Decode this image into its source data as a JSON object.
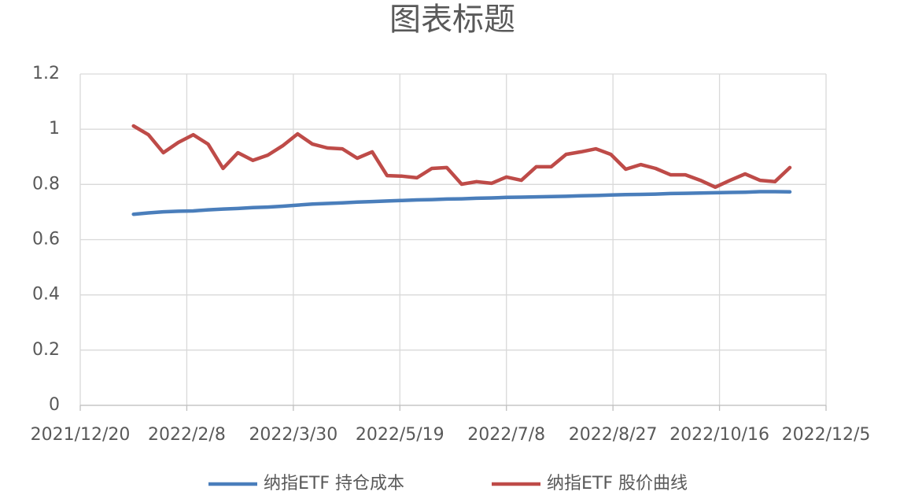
{
  "chart_data": {
    "type": "line",
    "title": "图表标题",
    "x": [
      "2022/1/14",
      "2022/1/21",
      "2022/1/28",
      "2022/2/4",
      "2022/2/11",
      "2022/2/18",
      "2022/2/25",
      "2022/3/4",
      "2022/3/11",
      "2022/3/18",
      "2022/3/25",
      "2022/4/1",
      "2022/4/8",
      "2022/4/15",
      "2022/4/22",
      "2022/4/29",
      "2022/5/6",
      "2022/5/13",
      "2022/5/20",
      "2022/5/27",
      "2022/6/3",
      "2022/6/10",
      "2022/6/17",
      "2022/6/24",
      "2022/7/1",
      "2022/7/8",
      "2022/7/15",
      "2022/7/22",
      "2022/7/29",
      "2022/8/5",
      "2022/8/12",
      "2022/8/19",
      "2022/8/26",
      "2022/9/2",
      "2022/9/9",
      "2022/9/16",
      "2022/9/23",
      "2022/9/30",
      "2022/10/7",
      "2022/10/14",
      "2022/10/21",
      "2022/10/28",
      "2022/11/4",
      "2022/11/11",
      "2022/11/18"
    ],
    "series": [
      {
        "name": "纳指ETF 持仓成本",
        "color": "#4a7ebb",
        "values": [
          0.692,
          0.697,
          0.701,
          0.703,
          0.704,
          0.708,
          0.711,
          0.713,
          0.716,
          0.718,
          0.721,
          0.725,
          0.729,
          0.731,
          0.733,
          0.736,
          0.738,
          0.74,
          0.742,
          0.744,
          0.745,
          0.747,
          0.748,
          0.75,
          0.751,
          0.753,
          0.754,
          0.755,
          0.756,
          0.757,
          0.759,
          0.76,
          0.762,
          0.763,
          0.764,
          0.765,
          0.767,
          0.768,
          0.769,
          0.77,
          0.771,
          0.772,
          0.774,
          0.774,
          0.773
        ]
      },
      {
        "name": "纳指ETF 股价曲线",
        "color": "#be4b48",
        "values": [
          1.012,
          0.98,
          0.915,
          0.952,
          0.98,
          0.946,
          0.858,
          0.915,
          0.887,
          0.906,
          0.94,
          0.983,
          0.946,
          0.932,
          0.929,
          0.895,
          0.918,
          0.832,
          0.83,
          0.824,
          0.858,
          0.861,
          0.801,
          0.81,
          0.804,
          0.827,
          0.815,
          0.864,
          0.864,
          0.909,
          0.918,
          0.929,
          0.909,
          0.855,
          0.872,
          0.858,
          0.835,
          0.835,
          0.815,
          0.79,
          0.815,
          0.838,
          0.815,
          0.81,
          0.861
        ]
      }
    ],
    "xlim": [
      "2021/12/20",
      "2022/12/5"
    ],
    "xticks": [
      "2021/12/20",
      "2022/2/8",
      "2022/3/30",
      "2022/5/19",
      "2022/7/8",
      "2022/8/27",
      "2022/10/16",
      "2022/12/5"
    ],
    "ylim": [
      0,
      1.2
    ],
    "yticks": [
      0,
      0.2,
      0.4,
      0.6,
      0.8,
      1,
      1.2
    ],
    "grid": true,
    "legend": "bottom"
  }
}
